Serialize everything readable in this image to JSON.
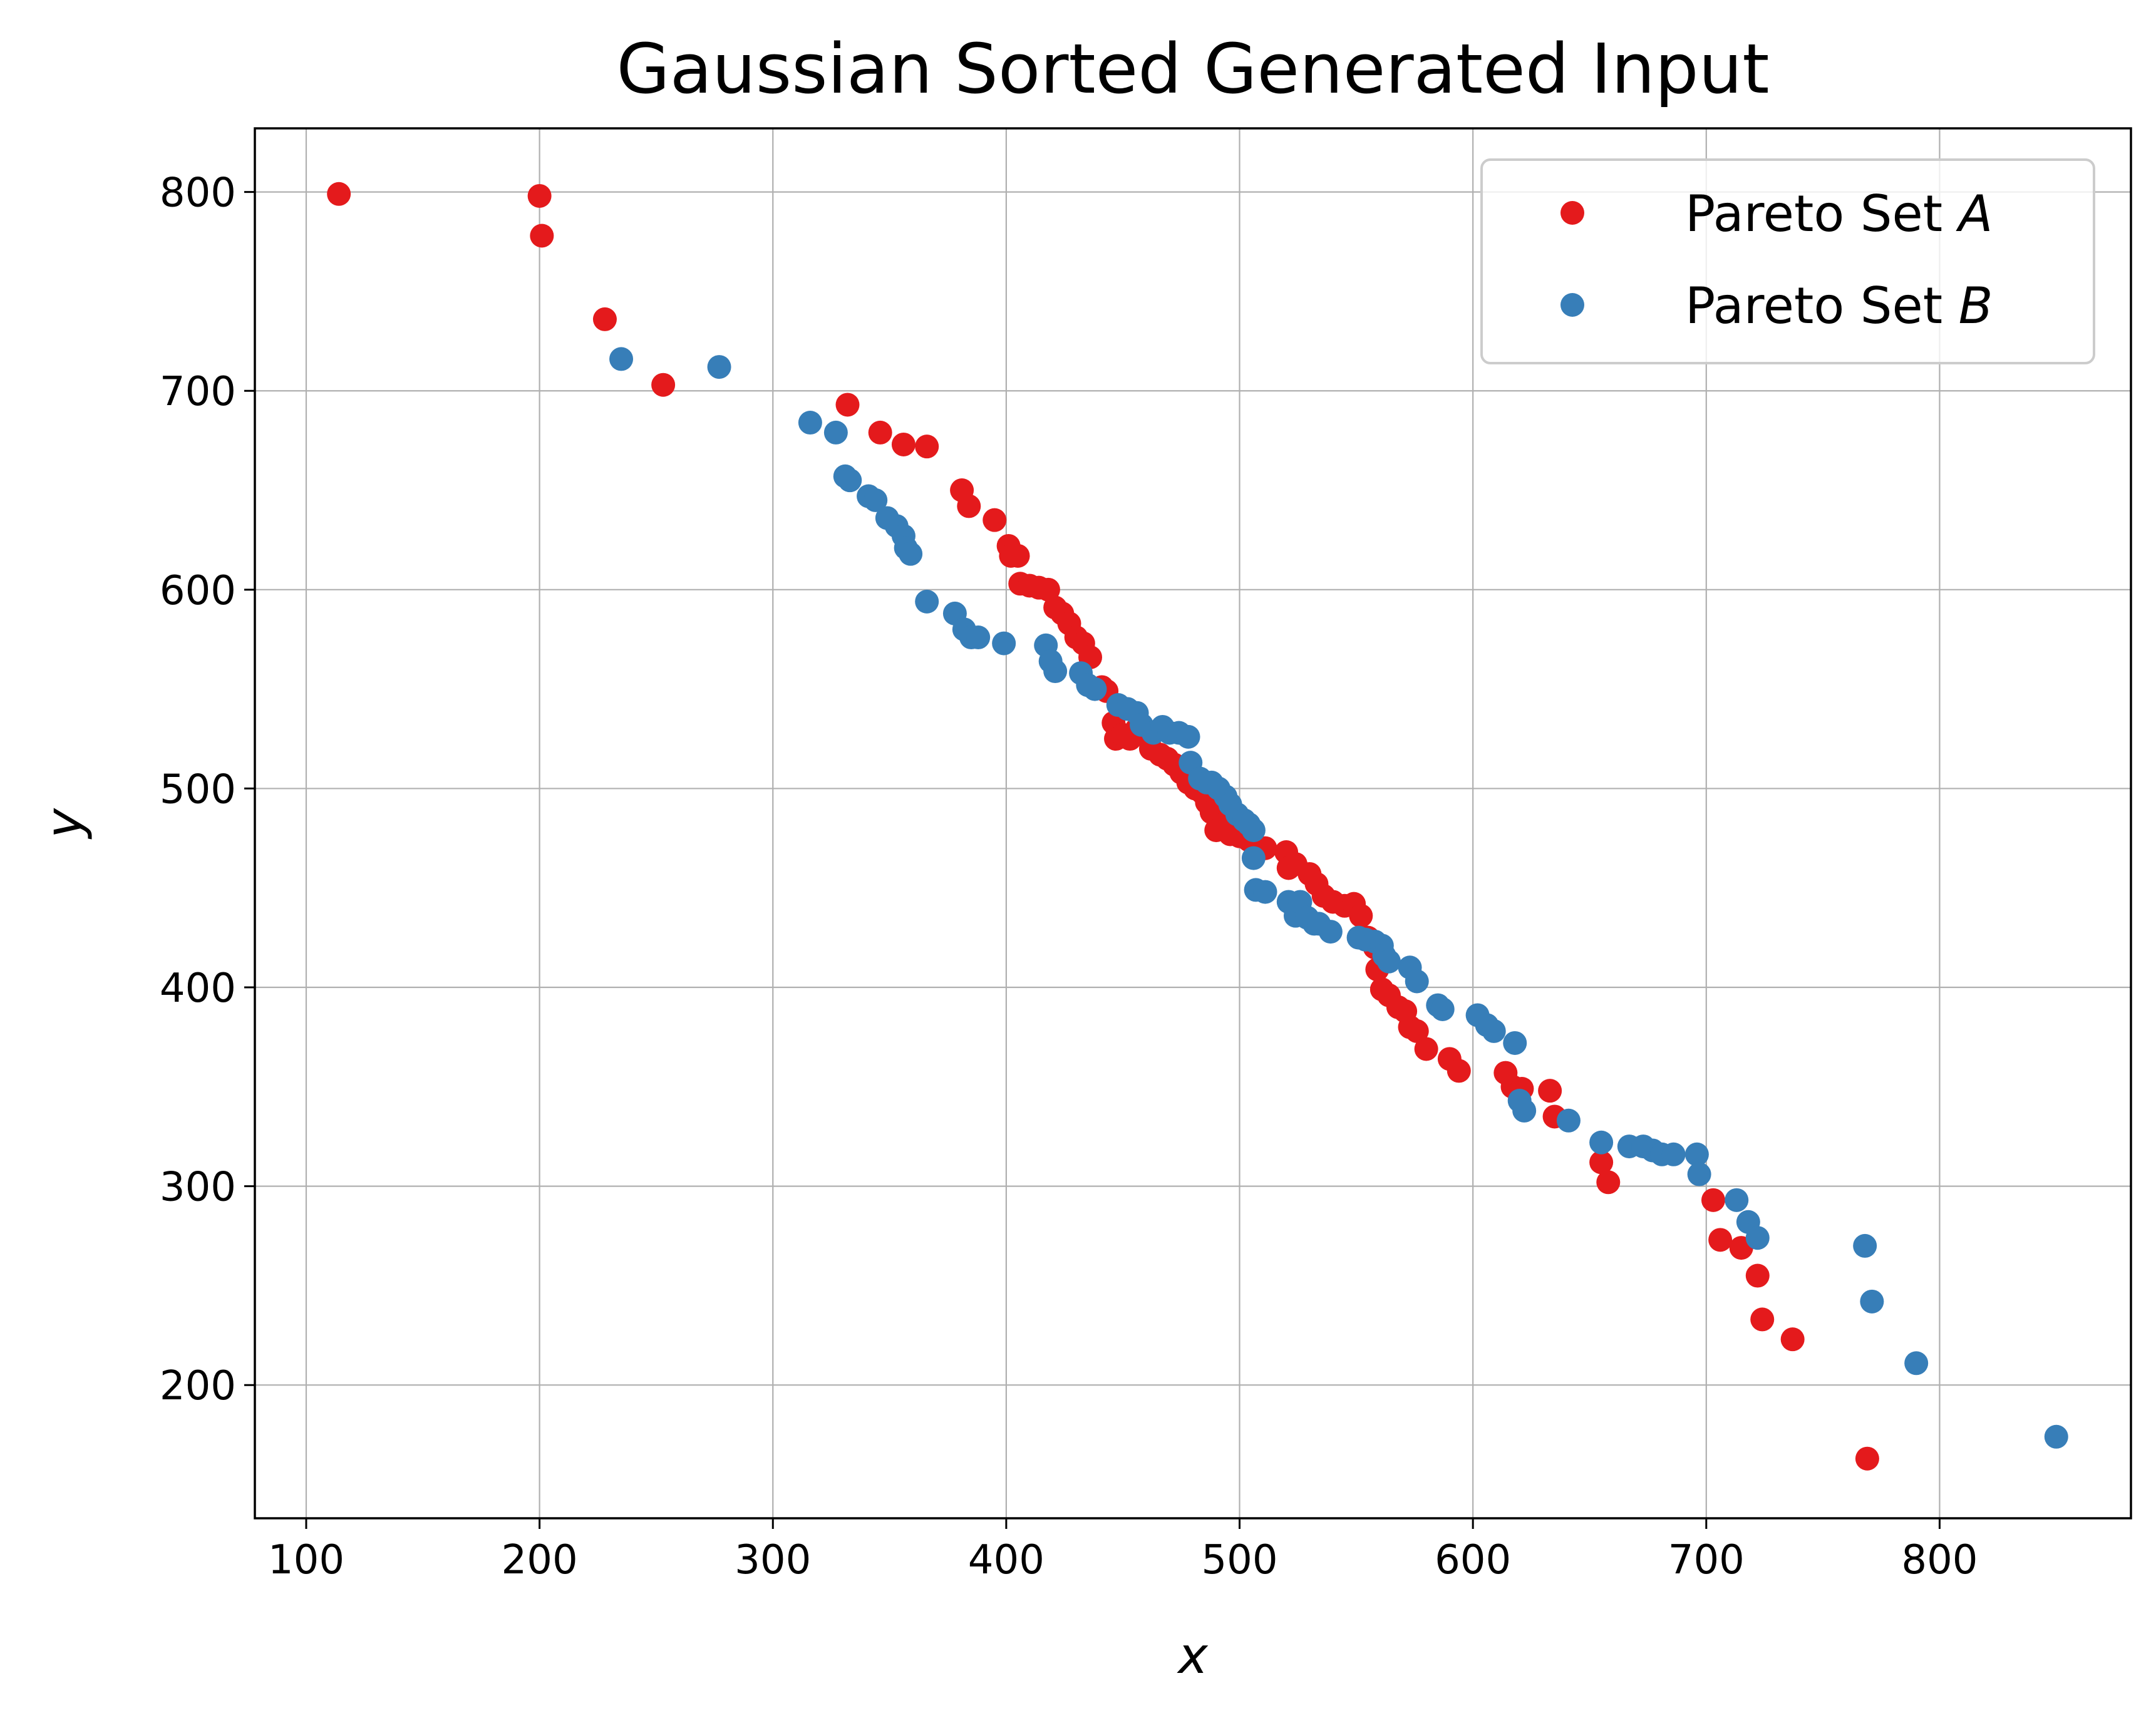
{
  "chart_data": {
    "type": "scatter",
    "title": "Gaussian Sorted Generated Input",
    "xlabel": "x",
    "ylabel": "y",
    "xlim": [
      78,
      882
    ],
    "ylim": [
      133,
      832
    ],
    "xticks": [
      100,
      200,
      300,
      400,
      500,
      600,
      700,
      800
    ],
    "yticks": [
      200,
      300,
      400,
      500,
      600,
      700,
      800
    ],
    "grid": true,
    "legend_position": "top-right",
    "series": [
      {
        "name": "Pareto Set A",
        "legend_prefix": "Pareto Set ",
        "legend_var": "A",
        "color": "#e41a1c",
        "points": [
          [
            114,
            799
          ],
          [
            200,
            798
          ],
          [
            201,
            778
          ],
          [
            228,
            736
          ],
          [
            253,
            703
          ],
          [
            332,
            693
          ],
          [
            346,
            679
          ],
          [
            356,
            673
          ],
          [
            366,
            672
          ],
          [
            381,
            650
          ],
          [
            384,
            642
          ],
          [
            395,
            635
          ],
          [
            401,
            622
          ],
          [
            402,
            617
          ],
          [
            405,
            617
          ],
          [
            406,
            603
          ],
          [
            410,
            602
          ],
          [
            414,
            601
          ],
          [
            418,
            600
          ],
          [
            421,
            591
          ],
          [
            424,
            588
          ],
          [
            427,
            583
          ],
          [
            430,
            576
          ],
          [
            433,
            573
          ],
          [
            436,
            566
          ],
          [
            441,
            551
          ],
          [
            443,
            549
          ],
          [
            446,
            533
          ],
          [
            447,
            525
          ],
          [
            450,
            527
          ],
          [
            453,
            525
          ],
          [
            456,
            530
          ],
          [
            459,
            527
          ],
          [
            462,
            520
          ],
          [
            466,
            517
          ],
          [
            469,
            515
          ],
          [
            472,
            512
          ],
          [
            475,
            508
          ],
          [
            478,
            503
          ],
          [
            481,
            500
          ],
          [
            484,
            498
          ],
          [
            486,
            493
          ],
          [
            488,
            488
          ],
          [
            490,
            479
          ],
          [
            493,
            482
          ],
          [
            496,
            477
          ],
          [
            500,
            476
          ],
          [
            504,
            474
          ],
          [
            511,
            470
          ],
          [
            520,
            468
          ],
          [
            521,
            460
          ],
          [
            524,
            462
          ],
          [
            530,
            457
          ],
          [
            533,
            452
          ],
          [
            536,
            446
          ],
          [
            540,
            443
          ],
          [
            545,
            441
          ],
          [
            549,
            442
          ],
          [
            552,
            436
          ],
          [
            555,
            425
          ],
          [
            558,
            420
          ],
          [
            559,
            409
          ],
          [
            561,
            399
          ],
          [
            564,
            396
          ],
          [
            568,
            390
          ],
          [
            571,
            388
          ],
          [
            573,
            380
          ],
          [
            576,
            378
          ],
          [
            580,
            369
          ],
          [
            590,
            364
          ],
          [
            594,
            358
          ],
          [
            614,
            357
          ],
          [
            617,
            350
          ],
          [
            621,
            349
          ],
          [
            633,
            348
          ],
          [
            635,
            335
          ],
          [
            655,
            312
          ],
          [
            658,
            302
          ],
          [
            703,
            293
          ],
          [
            706,
            273
          ],
          [
            715,
            269
          ],
          [
            722,
            255
          ],
          [
            724,
            233
          ],
          [
            737,
            223
          ],
          [
            769,
            163
          ]
        ]
      },
      {
        "name": "Pareto Set B",
        "legend_prefix": "Pareto Set ",
        "legend_var": "B",
        "color": "#377eb8",
        "points": [
          [
            235,
            716
          ],
          [
            277,
            712
          ],
          [
            316,
            684
          ],
          [
            327,
            679
          ],
          [
            331,
            657
          ],
          [
            333,
            655
          ],
          [
            341,
            647
          ],
          [
            344,
            645
          ],
          [
            349,
            636
          ],
          [
            353,
            632
          ],
          [
            356,
            627
          ],
          [
            357,
            621
          ],
          [
            359,
            618
          ],
          [
            366,
            594
          ],
          [
            378,
            588
          ],
          [
            382,
            580
          ],
          [
            385,
            576
          ],
          [
            388,
            576
          ],
          [
            399,
            573
          ],
          [
            417,
            572
          ],
          [
            419,
            564
          ],
          [
            421,
            559
          ],
          [
            432,
            558
          ],
          [
            435,
            552
          ],
          [
            438,
            550
          ],
          [
            448,
            542
          ],
          [
            452,
            540
          ],
          [
            456,
            538
          ],
          [
            458,
            532
          ],
          [
            463,
            528
          ],
          [
            467,
            531
          ],
          [
            470,
            528
          ],
          [
            474,
            528
          ],
          [
            478,
            526
          ],
          [
            479,
            513
          ],
          [
            483,
            505
          ],
          [
            486,
            503
          ],
          [
            488,
            503
          ],
          [
            491,
            500
          ],
          [
            494,
            496
          ],
          [
            496,
            492
          ],
          [
            499,
            487
          ],
          [
            502,
            484
          ],
          [
            504,
            482
          ],
          [
            506,
            479
          ],
          [
            506,
            465
          ],
          [
            507,
            449
          ],
          [
            511,
            448
          ],
          [
            521,
            443
          ],
          [
            524,
            436
          ],
          [
            526,
            443
          ],
          [
            529,
            435
          ],
          [
            532,
            432
          ],
          [
            534,
            432
          ],
          [
            539,
            428
          ],
          [
            551,
            425
          ],
          [
            554,
            424
          ],
          [
            558,
            423
          ],
          [
            561,
            421
          ],
          [
            562,
            416
          ],
          [
            564,
            413
          ],
          [
            573,
            410
          ],
          [
            576,
            403
          ],
          [
            585,
            391
          ],
          [
            587,
            389
          ],
          [
            602,
            386
          ],
          [
            606,
            381
          ],
          [
            609,
            378
          ],
          [
            618,
            372
          ],
          [
            620,
            343
          ],
          [
            622,
            338
          ],
          [
            641,
            333
          ],
          [
            655,
            322
          ],
          [
            667,
            320
          ],
          [
            673,
            320
          ],
          [
            677,
            318
          ],
          [
            681,
            316
          ],
          [
            686,
            316
          ],
          [
            696,
            316
          ],
          [
            697,
            306
          ],
          [
            713,
            293
          ],
          [
            718,
            282
          ],
          [
            722,
            274
          ],
          [
            768,
            270
          ],
          [
            771,
            242
          ],
          [
            790,
            211
          ],
          [
            850,
            174
          ]
        ]
      }
    ]
  }
}
